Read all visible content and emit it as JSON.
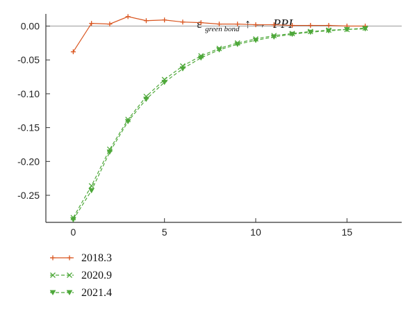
{
  "chart_data": {
    "type": "line",
    "title": {
      "symbol": "ε",
      "subscript": "green bond",
      "arrow": "↑ →",
      "variable": "PPI"
    },
    "xlabel": "",
    "ylabel": "",
    "xlim": [
      -1.5,
      18
    ],
    "ylim": [
      -0.29,
      0.018
    ],
    "x_ticks": [
      0,
      5,
      10,
      15
    ],
    "y_ticks": [
      0.0,
      -0.05,
      -0.1,
      -0.15,
      -0.2,
      -0.25
    ],
    "x_tick_labels": [
      "0",
      "5",
      "10",
      "15"
    ],
    "y_tick_labels": [
      "0.00",
      "-0.05",
      "-0.10",
      "-0.15",
      "-0.20",
      "-0.25"
    ],
    "zero_line": true,
    "grid": false,
    "legend_position": "bottom-left",
    "series": [
      {
        "name": "2018.3",
        "color": "#d9541e",
        "line_style": "solid",
        "marker": "plus",
        "x": [
          0,
          1,
          2,
          3,
          4,
          5,
          6,
          7,
          8,
          9,
          10,
          11,
          12,
          13,
          14,
          15,
          16
        ],
        "values": [
          -0.038,
          0.004,
          0.003,
          0.014,
          0.008,
          0.009,
          0.006,
          0.005,
          0.003,
          0.003,
          0.002,
          0.002,
          0.001,
          0.001,
          0.001,
          0.0,
          0.0
        ]
      },
      {
        "name": "2020.9",
        "color": "#4ea83a",
        "line_style": "dashed",
        "marker": "x",
        "x": [
          0,
          1,
          2,
          3,
          4,
          5,
          6,
          7,
          8,
          9,
          10,
          11,
          12,
          13,
          14,
          15,
          16
        ],
        "values": [
          -0.283,
          -0.236,
          -0.182,
          -0.138,
          -0.104,
          -0.079,
          -0.059,
          -0.044,
          -0.033,
          -0.025,
          -0.019,
          -0.014,
          -0.011,
          -0.008,
          -0.006,
          -0.005,
          -0.003
        ]
      },
      {
        "name": "2021.4",
        "color": "#4ea83a",
        "line_style": "dashed",
        "marker": "triangle-down",
        "x": [
          0,
          1,
          2,
          3,
          4,
          5,
          6,
          7,
          8,
          9,
          10,
          11,
          12,
          13,
          14,
          15,
          16
        ],
        "values": [
          -0.286,
          -0.243,
          -0.186,
          -0.141,
          -0.108,
          -0.083,
          -0.063,
          -0.047,
          -0.035,
          -0.027,
          -0.021,
          -0.016,
          -0.012,
          -0.009,
          -0.007,
          -0.005,
          -0.004
        ]
      }
    ]
  }
}
